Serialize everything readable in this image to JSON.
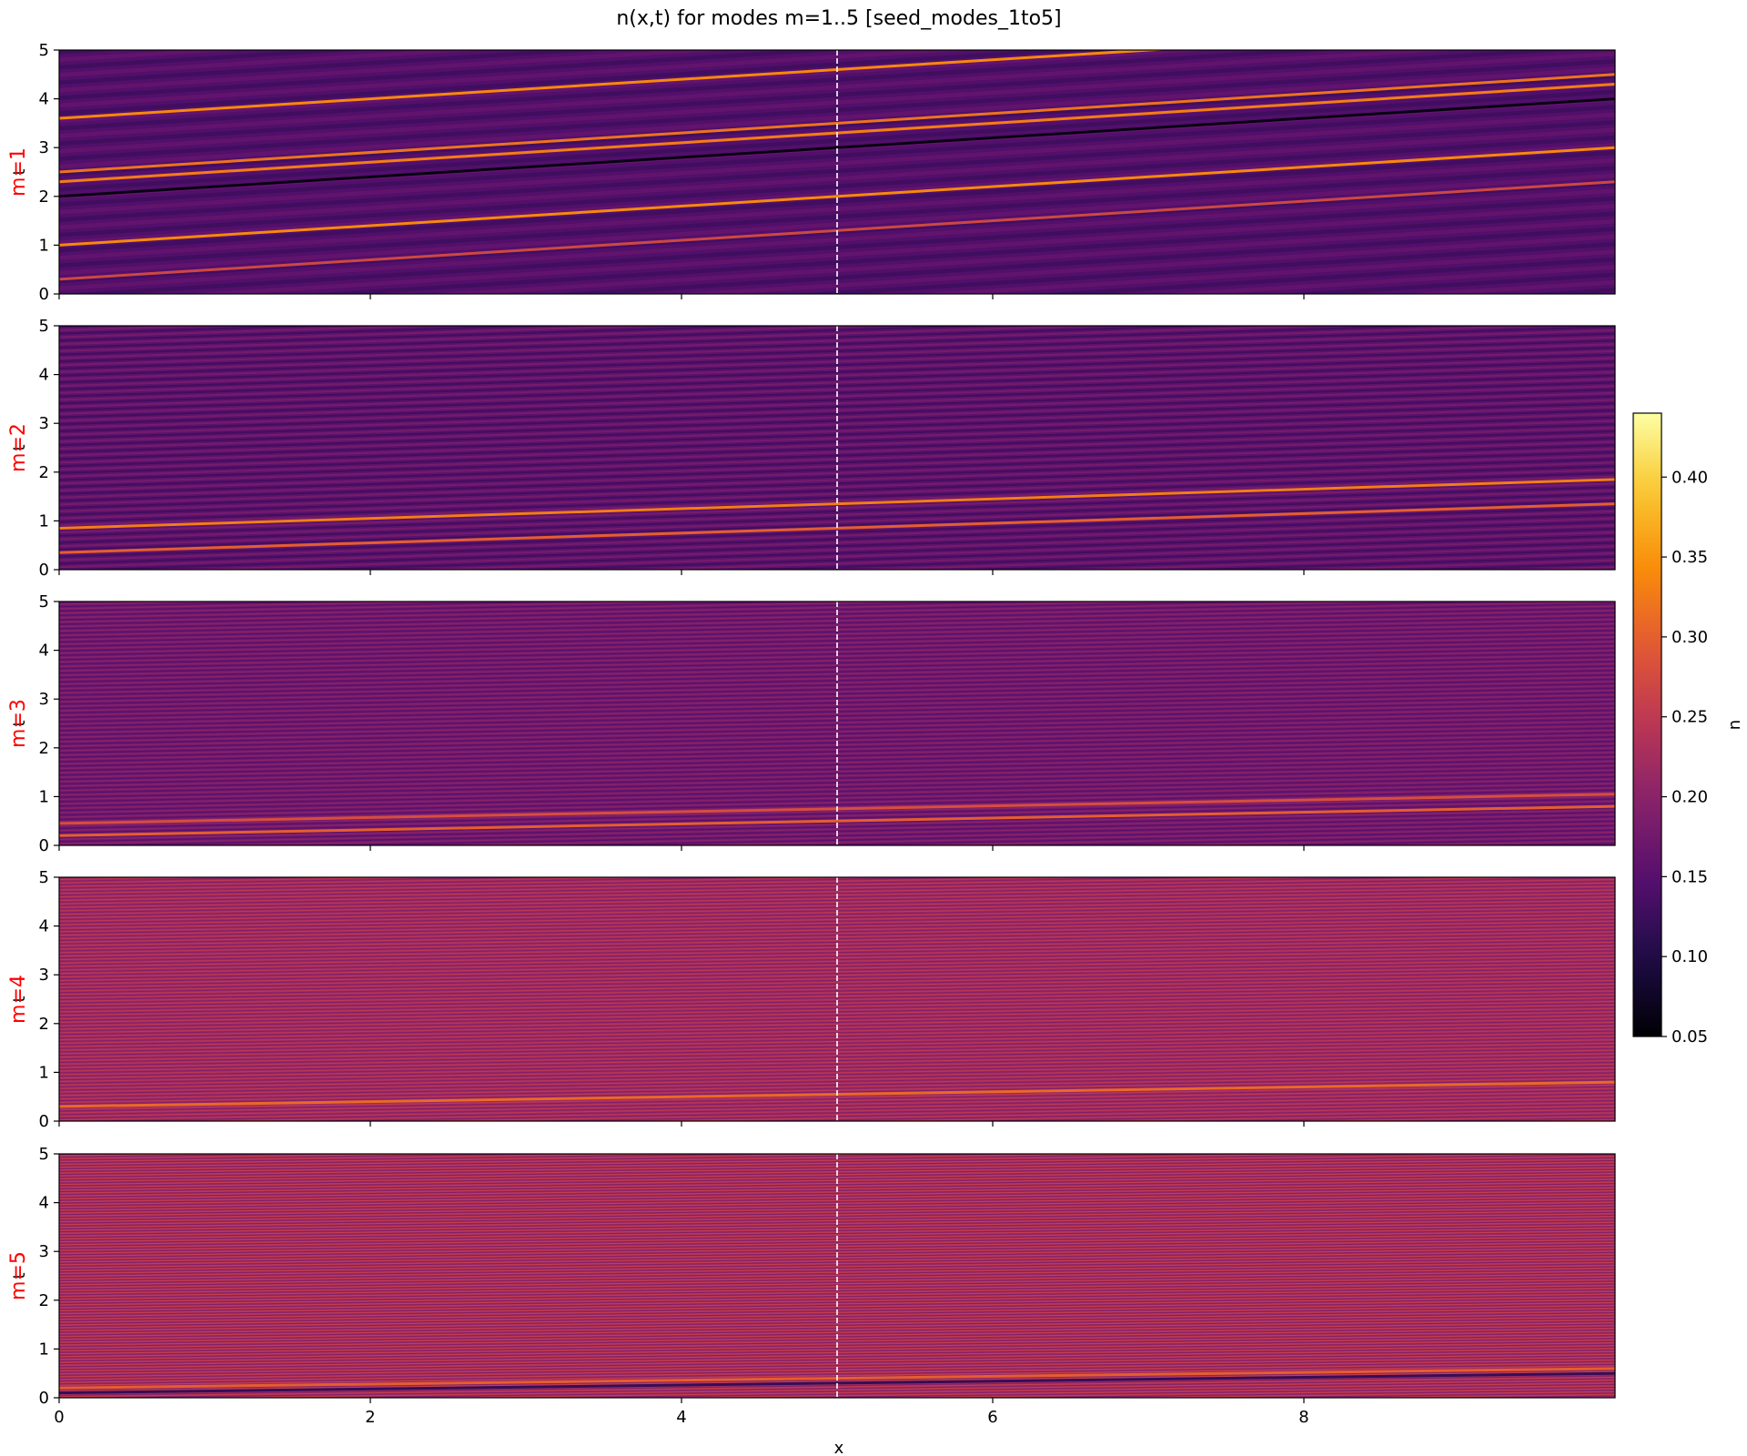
{
  "figure": {
    "title": "n(x,t) for modes m=1..5  [seed_modes_1to5]",
    "xlabel": "x",
    "colorbar_label": "n",
    "marker_color": "#ffffff",
    "label_color": "#ff0000"
  },
  "chart_data": [
    {
      "type": "heatmap",
      "title": "",
      "ylabel": "m=1",
      "overlap_label": "t",
      "xlim": [
        0,
        10
      ],
      "ylim": [
        0,
        5
      ],
      "x_ticks": [
        0,
        2,
        4,
        6,
        8
      ],
      "y_ticks": [
        0,
        1,
        2,
        3,
        4,
        5
      ],
      "x_tick_labels_shown": false,
      "vline_x": 5,
      "bands": 32,
      "base": [
        0.13,
        0.16
      ],
      "drift": 0.2,
      "features": [
        {
          "t": 0.3,
          "v": 0.27
        },
        {
          "t": 1.0,
          "v": 0.34
        },
        {
          "t": 2.0,
          "v": 0.06
        },
        {
          "t": 2.3,
          "v": 0.33
        },
        {
          "t": 2.5,
          "v": 0.32
        },
        {
          "t": 3.6,
          "v": 0.34
        }
      ]
    },
    {
      "type": "heatmap",
      "title": "",
      "ylabel": "m=2",
      "overlap_label": "t",
      "xlim": [
        0,
        10
      ],
      "ylim": [
        0,
        5
      ],
      "x_ticks": [
        0,
        2,
        4,
        6,
        8
      ],
      "y_ticks": [
        0,
        1,
        2,
        3,
        4,
        5
      ],
      "x_tick_labels_shown": false,
      "vline_x": 5,
      "bands": 70,
      "base": [
        0.13,
        0.18
      ],
      "drift": 0.1,
      "features": [
        {
          "t": 0.35,
          "v": 0.3
        },
        {
          "t": 0.85,
          "v": 0.33
        }
      ]
    },
    {
      "type": "heatmap",
      "title": "",
      "ylabel": "m=3",
      "overlap_label": "t",
      "xlim": [
        0,
        10
      ],
      "ylim": [
        0,
        5
      ],
      "x_ticks": [
        0,
        2,
        4,
        6,
        8
      ],
      "y_ticks": [
        0,
        1,
        2,
        3,
        4,
        5
      ],
      "x_tick_labels_shown": false,
      "vline_x": 5,
      "bands": 110,
      "base": [
        0.15,
        0.2
      ],
      "drift": 0.06,
      "features": [
        {
          "t": 0.2,
          "v": 0.3
        },
        {
          "t": 0.45,
          "v": 0.28
        }
      ]
    },
    {
      "type": "heatmap",
      "title": "",
      "ylabel": "m=4",
      "overlap_label": "t",
      "xlim": [
        0,
        10
      ],
      "ylim": [
        0,
        5
      ],
      "x_ticks": [
        0,
        2,
        4,
        6,
        8
      ],
      "y_ticks": [
        0,
        1,
        2,
        3,
        4,
        5
      ],
      "x_tick_labels_shown": false,
      "vline_x": 5,
      "bands": 140,
      "base": [
        0.19,
        0.25
      ],
      "drift": 0.05,
      "features": [
        {
          "t": 0.3,
          "v": 0.31
        }
      ]
    },
    {
      "type": "heatmap",
      "title": "",
      "ylabel": "m=5",
      "overlap_label": "t",
      "xlim": [
        0,
        10
      ],
      "ylim": [
        0,
        5
      ],
      "x_ticks": [
        0,
        2,
        4,
        6,
        8
      ],
      "y_ticks": [
        0,
        1,
        2,
        3,
        4,
        5
      ],
      "x_tick_labels_shown": true,
      "vline_x": 5,
      "bands": 170,
      "base": [
        0.19,
        0.26
      ],
      "drift": 0.04,
      "features": [
        {
          "t": 0.2,
          "v": 0.3
        },
        {
          "t": 0.1,
          "v": 0.12
        }
      ]
    }
  ],
  "colorbar": {
    "colormap": "inferno",
    "range": [
      0.05,
      0.44
    ],
    "ticks": [
      "0.05",
      "0.10",
      "0.15",
      "0.20",
      "0.25",
      "0.30",
      "0.35",
      "0.40"
    ]
  }
}
